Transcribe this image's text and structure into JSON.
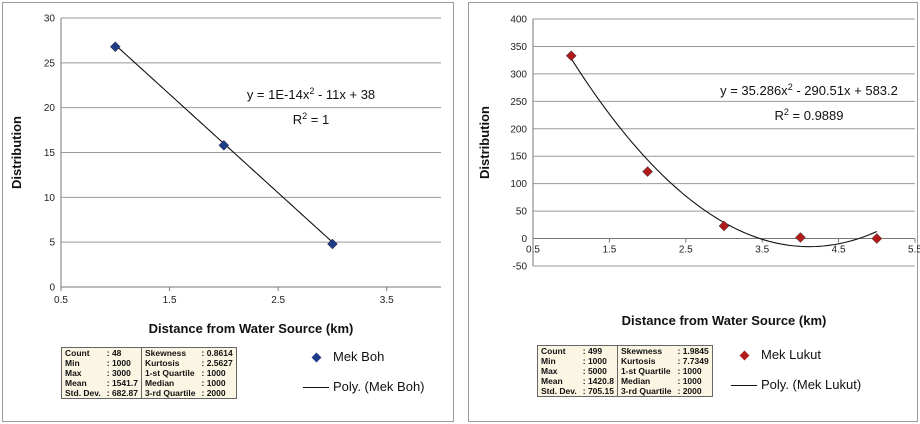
{
  "chart_data": [
    {
      "type": "scatter",
      "xlabel": "Distance from Water Source (km)",
      "ylabel": "Distribution",
      "xlim": [
        0.5,
        4.0
      ],
      "ylim": [
        0,
        30
      ],
      "x_ticks": [
        "0.5",
        "1.5",
        "2.5",
        "3.5"
      ],
      "y_ticks": [
        "0",
        "5",
        "10",
        "15",
        "20",
        "25",
        "30"
      ],
      "grid": "horizontal",
      "series": [
        {
          "name": "Mek Boh",
          "x": [
            1,
            2,
            3
          ],
          "y": [
            26.8,
            15.8,
            4.8
          ],
          "color": "#1f3c88",
          "marker": "diamond"
        }
      ],
      "trendline": {
        "name": "Poly. (Mek Boh)",
        "coefficients": [
          1e-14,
          -11,
          38
        ]
      },
      "equation": {
        "prefix": "y = 1E-14x",
        "sup": "2",
        "suffix": " - 11x + 38"
      },
      "r_squared": {
        "prefix": "R",
        "sup": "2",
        "suffix": " = 1"
      },
      "stats": [
        [
          "Count",
          ": 48",
          "Skewness",
          ": 0.8614"
        ],
        [
          "Min",
          ": 1000",
          "Kurtosis",
          ": 2.5627"
        ],
        [
          "Max",
          ": 3000",
          "1-st Quartile",
          ": 1000"
        ],
        [
          "Mean",
          ": 1541.7",
          "Median",
          ": 1000"
        ],
        [
          "Std. Dev.",
          ": 682.87",
          "3-rd Quartile",
          ": 2000"
        ]
      ]
    },
    {
      "type": "scatter",
      "xlabel": "Distance from Water Source (km)",
      "ylabel": "Distribution",
      "xlim": [
        0.5,
        5.5
      ],
      "ylim": [
        -50,
        400
      ],
      "x_ticks": [
        "0.5",
        "1.5",
        "2.5",
        "3.5",
        "4.5",
        "5.5"
      ],
      "y_ticks": [
        "-50",
        "0",
        "50",
        "100",
        "150",
        "200",
        "250",
        "300",
        "350",
        "400"
      ],
      "grid": "horizontal",
      "series": [
        {
          "name": "Mek Lukut",
          "x": [
            1,
            2,
            3,
            4,
            5
          ],
          "y": [
            333,
            122,
            23,
            2,
            0
          ],
          "color": "#b01c1c",
          "marker": "diamond"
        }
      ],
      "trendline": {
        "name": "Poly. (Mek Lukut)",
        "coefficients": [
          35.286,
          -290.51,
          583.2
        ]
      },
      "equation": {
        "prefix": "y = 35.286x",
        "sup": "2",
        "suffix": " - 290.51x + 583.2"
      },
      "r_squared": {
        "prefix": "R",
        "sup": "2",
        "suffix": " = 0.9889"
      },
      "stats": [
        [
          "Count",
          ": 499",
          "Skewness",
          ": 1.9845"
        ],
        [
          "Min",
          ": 1000",
          "Kurtosis",
          ": 7.7349"
        ],
        [
          "Max",
          ": 5000",
          "1-st Quartile",
          ": 1000"
        ],
        [
          "Mean",
          ": 1420.8",
          "Median",
          ": 1000"
        ],
        [
          "Std. Dev.",
          ": 705.15",
          "3-rd Quartile",
          ": 2000"
        ]
      ]
    }
  ]
}
